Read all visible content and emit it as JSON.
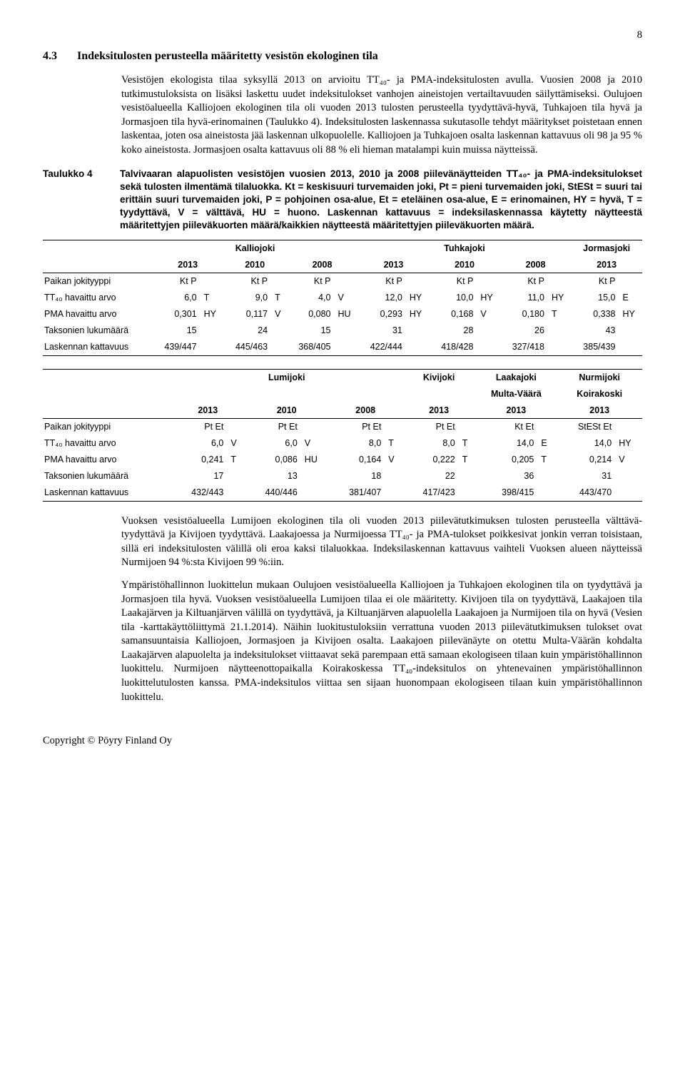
{
  "page_number": "8",
  "section": {
    "number": "4.3",
    "title": "Indeksitulosten perusteella määritetty vesistön ekologinen tila"
  },
  "paragraphs": {
    "p1": "Vesistöjen ekologista tilaa syksyllä 2013 on arvioitu TT₄₀- ja PMA-indeksitulosten avulla. Vuosien 2008 ja 2010 tutkimustuloksista on lisäksi laskettu uudet indeksitulokset vanhojen aineistojen vertailtavuuden säilyttämiseksi. Oulujoen vesistöalueella Kalliojoen ekologinen tila oli vuoden 2013 tulosten perusteella tyydyttävä-hyvä, Tuhkajoen tila hyvä ja Jormasjoen tila hyvä-erinomainen (Taulukko 4). Indeksitulosten laskennassa sukutasolle tehdyt määritykset poistetaan ennen laskentaa, joten osa aineistosta jää laskennan ulkopuolelle. Kalliojoen ja Tuhkajoen osalta laskennan kattavuus oli 98 ja 95 % koko aineistosta. Jormasjoen osalta kattavuus oli 88 % eli hieman matalampi kuin muissa näytteissä.",
    "p2": "Vuoksen vesistöalueella Lumijoen ekologinen tila oli vuoden 2013 piilevätutkimuksen tulosten perusteella välttävä-tyydyttävä ja Kivijoen tyydyttävä. Laakajoessa ja Nurmijoessa TT₄₀- ja PMA-tulokset poikkesivat jonkin verran toisistaan, sillä eri indeksitulosten välillä oli eroa kaksi tilaluokkaa. Indeksilaskennan kattavuus vaihteli Vuoksen alueen näytteissä Nurmijoen 94 %:sta Kivijoen 99 %:iin.",
    "p3": "Ympäristöhallinnon luokittelun mukaan Oulujoen vesistöalueella Kalliojoen ja Tuhkajoen ekologinen tila on tyydyttävä ja Jormasjoen tila hyvä. Vuoksen vesistöalueella Lumijoen tilaa ei ole määritetty. Kivijoen tila on tyydyttävä, Laakajoen tila Laakajärven ja Kiltuanjärven välillä on tyydyttävä, ja Kiltuanjärven alapuolella Laakajoen ja Nurmijoen tila on hyvä (Vesien tila -karttakäyttöliittymä 21.1.2014). Näihin luokitustuloksiin verrattuna vuoden 2013 piilevätutkimuksen tulokset ovat samansuuntaisia Kalliojoen, Jormasjoen ja Kivijoen osalta. Laakajoen piilevänäyte on otettu Multa-Väärän kohdalta Laakajärven alapuolelta ja indeksitulokset viittaavat sekä parempaan että samaan ekologiseen tilaan kuin ympäristöhallinnon luokittelu. Nurmijoen näytteenottopaikalla Koirakoskessa TT₄₀-indeksitulos on yhtenevainen ympäristöhallinnon luokittelutulosten kanssa. PMA-indeksitulos viittaa sen sijaan huonompaan ekologiseen tilaan kuin ympäristöhallinnon luokittelu."
  },
  "table_caption": {
    "label": "Taulukko 4",
    "text": "Talvivaaran alapuolisten vesistöjen vuosien 2013, 2010 ja 2008 piilevänäytteiden TT₄₀- ja PMA-indeksitulokset sekä tulosten ilmentämä tilaluokka. Kt = keskisuuri turvemaiden joki, Pt = pieni turvemaiden joki, StESt = suuri tai erittäin suuri turvemaiden joki, P = pohjoinen osa-alue, Et = eteläinen osa-alue, E = erinomainen, HY = hyvä, T = tyydyttävä, V = välttävä, HU = huono. Laskennan kattavuus = indeksilaskennassa käytetty näytteestä määritettyjen piileväkuorten määrä/kaikkien näytteestä määritettyjen piileväkuorten määrä."
  },
  "table1": {
    "group_headers": [
      "Kalliojoki",
      "Tuhkajoki",
      "Jormasjoki"
    ],
    "years": [
      "2013",
      "2010",
      "2008",
      "2013",
      "2010",
      "2008",
      "2013"
    ],
    "rows": [
      {
        "label": "Paikan jokityyppi",
        "cells": [
          [
            "Kt P",
            ""
          ],
          [
            "Kt P",
            ""
          ],
          [
            "Kt P",
            ""
          ],
          [
            "Kt P",
            ""
          ],
          [
            "Kt P",
            ""
          ],
          [
            "Kt P",
            ""
          ],
          [
            "Kt P",
            ""
          ]
        ]
      },
      {
        "label": "TT₄₀ havaittu arvo",
        "cells": [
          [
            "6,0",
            "T"
          ],
          [
            "9,0",
            "T"
          ],
          [
            "4,0",
            "V"
          ],
          [
            "12,0",
            "HY"
          ],
          [
            "10,0",
            "HY"
          ],
          [
            "11,0",
            "HY"
          ],
          [
            "15,0",
            "E"
          ]
        ]
      },
      {
        "label": "PMA havaittu arvo",
        "cells": [
          [
            "0,301",
            "HY"
          ],
          [
            "0,117",
            "V"
          ],
          [
            "0,080",
            "HU"
          ],
          [
            "0,293",
            "HY"
          ],
          [
            "0,168",
            "V"
          ],
          [
            "0,180",
            "T"
          ],
          [
            "0,338",
            "HY"
          ]
        ]
      },
      {
        "label": "Taksonien lukumäärä",
        "cells": [
          [
            "15",
            ""
          ],
          [
            "24",
            ""
          ],
          [
            "15",
            ""
          ],
          [
            "31",
            ""
          ],
          [
            "28",
            ""
          ],
          [
            "26",
            ""
          ],
          [
            "43",
            ""
          ]
        ]
      },
      {
        "label": "Laskennan kattavuus",
        "cells": [
          [
            "439/447",
            ""
          ],
          [
            "445/463",
            ""
          ],
          [
            "368/405",
            ""
          ],
          [
            "422/444",
            ""
          ],
          [
            "418/428",
            ""
          ],
          [
            "327/418",
            ""
          ],
          [
            "385/439",
            ""
          ]
        ]
      }
    ]
  },
  "table2": {
    "group_headers": [
      "Lumijoki",
      "Kivijoki",
      "Laakajoki",
      "Nurmijoki"
    ],
    "sub_headers": [
      "",
      "",
      "Multa-Väärä",
      "Koirakoski"
    ],
    "years": [
      "2013",
      "2010",
      "2008",
      "2013",
      "2013",
      "2013"
    ],
    "rows": [
      {
        "label": "Paikan jokityyppi",
        "cells": [
          [
            "Pt Et",
            ""
          ],
          [
            "Pt Et",
            ""
          ],
          [
            "Pt Et",
            ""
          ],
          [
            "Pt Et",
            ""
          ],
          [
            "Kt Et",
            ""
          ],
          [
            "StESt Et",
            ""
          ]
        ]
      },
      {
        "label": "TT₄₀ havaittu arvo",
        "cells": [
          [
            "6,0",
            "V"
          ],
          [
            "6,0",
            "V"
          ],
          [
            "8,0",
            "T"
          ],
          [
            "8,0",
            "T"
          ],
          [
            "14,0",
            "E"
          ],
          [
            "14,0",
            "HY"
          ]
        ]
      },
      {
        "label": "PMA havaittu arvo",
        "cells": [
          [
            "0,241",
            "T"
          ],
          [
            "0,086",
            "HU"
          ],
          [
            "0,164",
            "V"
          ],
          [
            "0,222",
            "T"
          ],
          [
            "0,205",
            "T"
          ],
          [
            "0,214",
            "V"
          ]
        ]
      },
      {
        "label": "Taksonien lukumäärä",
        "cells": [
          [
            "17",
            ""
          ],
          [
            "13",
            ""
          ],
          [
            "18",
            ""
          ],
          [
            "22",
            ""
          ],
          [
            "36",
            ""
          ],
          [
            "31",
            ""
          ]
        ]
      },
      {
        "label": "Laskennan kattavuus",
        "cells": [
          [
            "432/443",
            ""
          ],
          [
            "440/446",
            ""
          ],
          [
            "381/407",
            ""
          ],
          [
            "417/423",
            ""
          ],
          [
            "398/415",
            ""
          ],
          [
            "443/470",
            ""
          ]
        ]
      }
    ]
  },
  "footer": "Copyright © Pöyry Finland Oy"
}
